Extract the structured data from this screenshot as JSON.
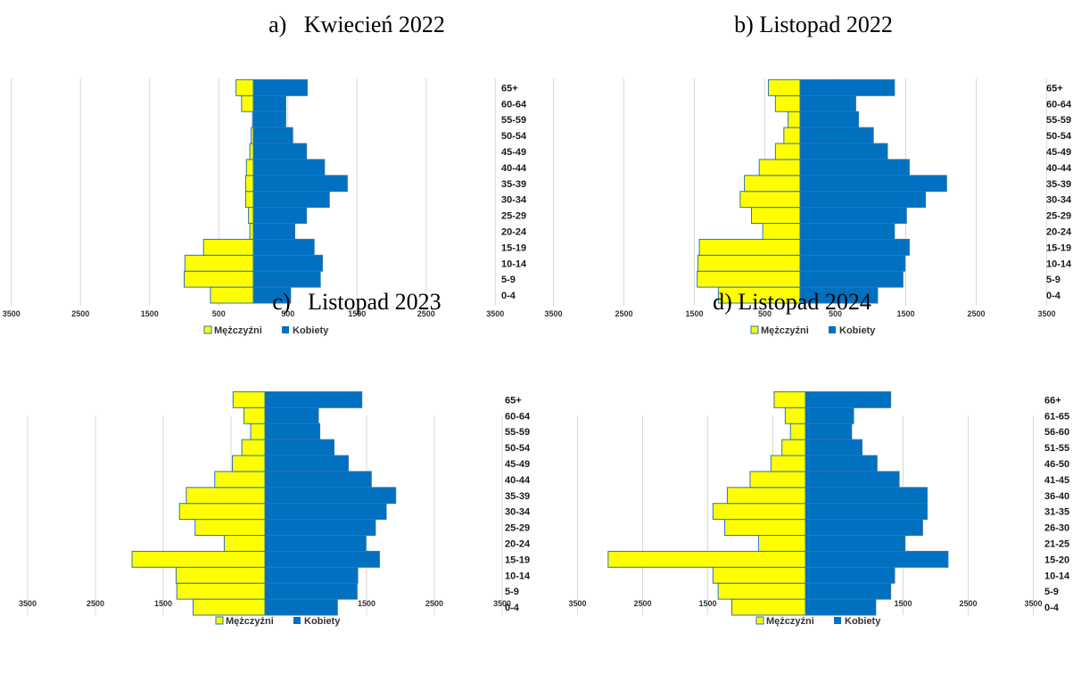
{
  "colors": {
    "men": "#ffff00",
    "women": "#0070c0",
    "bar_stroke": "#2e75b6",
    "grid": "#d9d9d9"
  },
  "chart_data": [
    {
      "type": "bar",
      "title": "a)   Kwiecień 2022",
      "categories": [
        "0-4",
        "5-9",
        "10-14",
        "15-19",
        "20-24",
        "25-29",
        "30-34",
        "35-39",
        "40-44",
        "45-49",
        "50-54",
        "55-59",
        "60-64",
        "65+"
      ],
      "series": [
        {
          "name": "Mężczyźni",
          "values": [
            620,
            1000,
            990,
            720,
            50,
            70,
            110,
            110,
            100,
            50,
            30,
            10,
            170,
            250
          ]
        },
        {
          "name": "Kobiety",
          "values": [
            540,
            970,
            1000,
            880,
            600,
            770,
            1100,
            1360,
            1030,
            770,
            570,
            470,
            470,
            780
          ]
        }
      ],
      "xlim": [
        -3500,
        3500
      ],
      "xticks": [
        "3500",
        "2500",
        "1500",
        "500",
        "500",
        "1500",
        "2500",
        "3500"
      ],
      "legend": "bottom",
      "grid": true
    },
    {
      "type": "bar",
      "title": "b) Listopad 2022",
      "categories": [
        "0-4",
        "5-9",
        "10-14",
        "15-19",
        "20-24",
        "25-29",
        "30-34",
        "35-39",
        "40-44",
        "45-49",
        "50-54",
        "55-59",
        "60-64",
        "65+"
      ],
      "series": [
        {
          "name": "Mężczyźni",
          "values": [
            1160,
            1460,
            1450,
            1430,
            530,
            690,
            850,
            790,
            580,
            350,
            230,
            170,
            350,
            450
          ]
        },
        {
          "name": "Kobiety",
          "values": [
            1100,
            1460,
            1490,
            1550,
            1340,
            1510,
            1780,
            2080,
            1550,
            1240,
            1040,
            830,
            790,
            1340
          ]
        }
      ],
      "xlim": [
        -3500,
        3500
      ],
      "xticks": [
        "3500",
        "2500",
        "1500",
        "500",
        "500",
        "1500",
        "2500",
        "3500"
      ],
      "legend": "bottom",
      "grid": true
    },
    {
      "type": "bar",
      "title": "c)   Listopad 2023",
      "categories": [
        "0-4",
        "5-9",
        "10-14",
        "15-19",
        "20-24",
        "25-29",
        "30-34",
        "35-39",
        "40-44",
        "45-49",
        "50-54",
        "55-59",
        "60-64",
        "65+"
      ],
      "series": [
        {
          "name": "Mężczyźni",
          "values": [
            1060,
            1300,
            1310,
            1960,
            600,
            1030,
            1260,
            1160,
            740,
            480,
            340,
            210,
            310,
            470
          ]
        },
        {
          "name": "Kobiety",
          "values": [
            1070,
            1360,
            1370,
            1690,
            1490,
            1630,
            1790,
            1930,
            1570,
            1230,
            1020,
            810,
            790,
            1430
          ]
        }
      ],
      "xlim": [
        -3500,
        3500
      ],
      "xticks": [
        "3500",
        "2500",
        "1500",
        "500",
        "500",
        "1500",
        "2500",
        "3500"
      ],
      "legend": "bottom",
      "grid": true
    },
    {
      "type": "bar",
      "title": "d) Listopad 2024",
      "categories": [
        "0-4",
        "5-9",
        "10-14",
        "15-20",
        "21-25",
        "26-30",
        "31-35",
        "36-40",
        "41-45",
        "46-50",
        "51-55",
        "56-60",
        "61-65",
        "66+"
      ],
      "series": [
        {
          "name": "Mężczyźni",
          "values": [
            1130,
            1340,
            1420,
            3030,
            720,
            1240,
            1420,
            1200,
            850,
            530,
            360,
            230,
            310,
            480
          ]
        },
        {
          "name": "Kobiety",
          "values": [
            1080,
            1310,
            1370,
            2190,
            1530,
            1800,
            1870,
            1870,
            1440,
            1100,
            870,
            710,
            740,
            1310
          ]
        }
      ],
      "xlim": [
        -3500,
        3500
      ],
      "xticks": [
        "3500",
        "2500",
        "1500",
        "500",
        "500",
        "1500",
        "2500",
        "3500"
      ],
      "legend": "bottom",
      "grid": true
    }
  ]
}
